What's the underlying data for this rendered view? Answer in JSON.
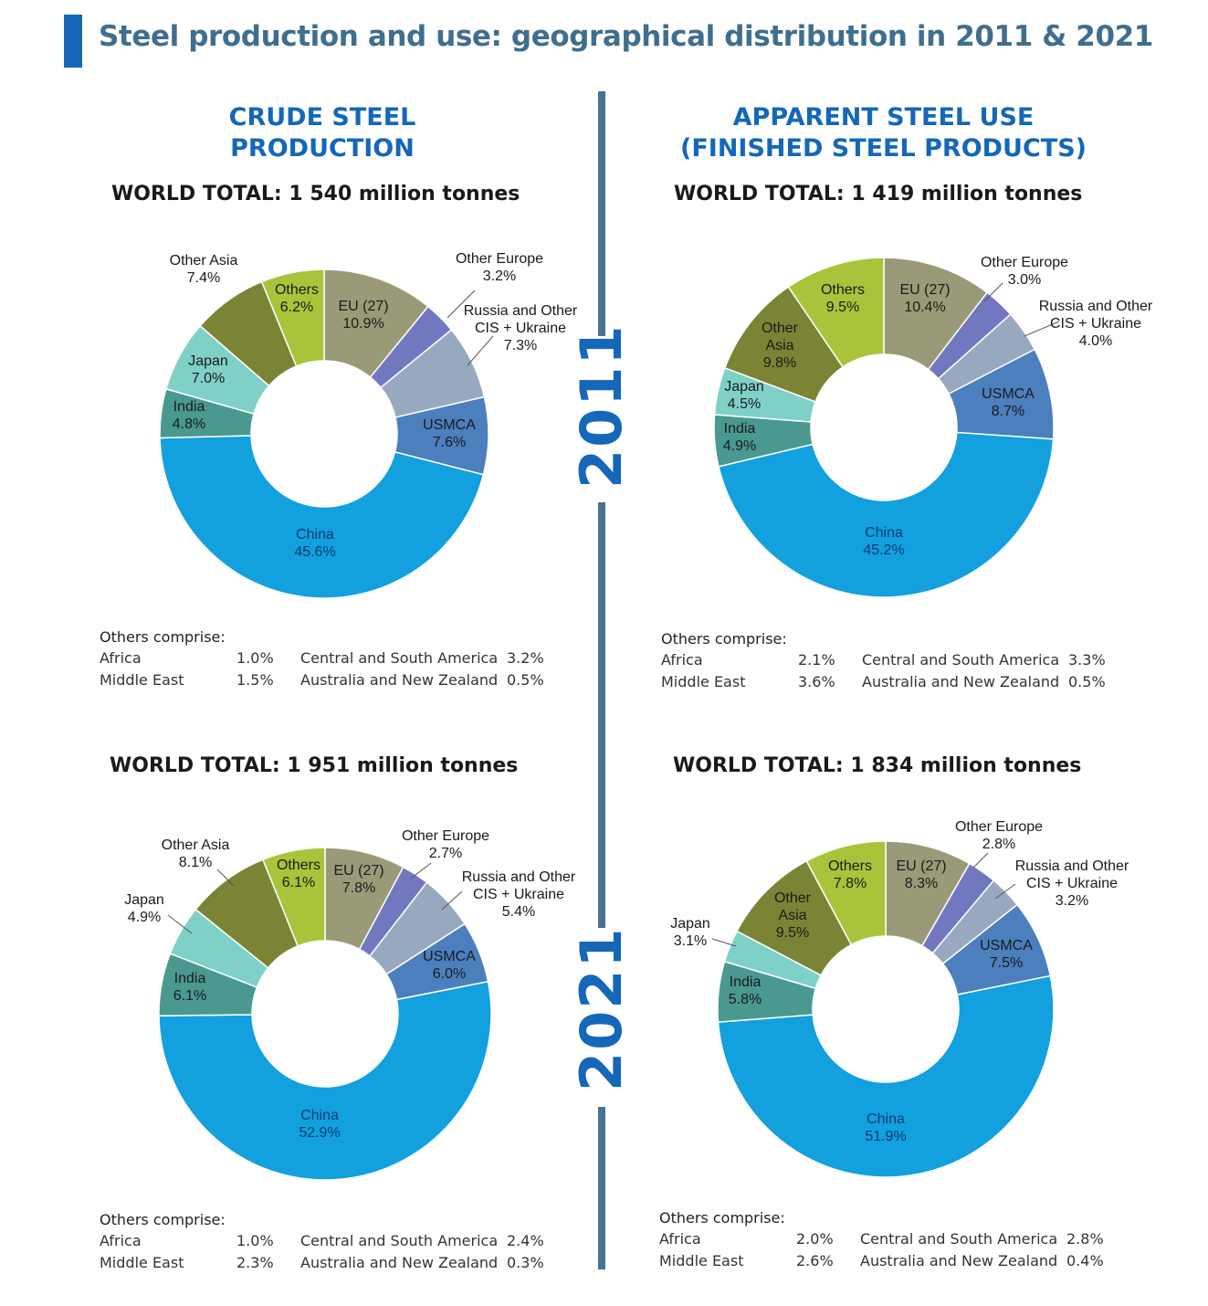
{
  "page": {
    "title": "Steel production and use: geographical distribution in 2011 & 2021",
    "col_left": [
      "CRUDE STEEL",
      "PRODUCTION"
    ],
    "col_right": [
      "APPARENT STEEL USE",
      "(FINISHED STEEL PRODUCTS)"
    ],
    "year_top": "2011",
    "year_bottom": "2021",
    "others_label": "Others comprise:"
  },
  "colors": {
    "EU (27)": "#9b9a78",
    "Other Europe": "#7278c0",
    "Russia and Other CIS + Ukraine": "#98a9bf",
    "USMCA": "#4b7fbe",
    "China": "#12a0de",
    "India": "#4a9990",
    "Japan": "#7fd1c8",
    "Other Asia": "#7a8434",
    "Others": "#a9c43b"
  },
  "chart_data": [
    {
      "type": "pie",
      "id": "prod2011",
      "world_total": "WORLD TOTAL: 1 540 million tonnes",
      "slices": [
        {
          "label": "EU (27)",
          "value": 10.9,
          "text": [
            "EU (27)",
            "10.9%"
          ]
        },
        {
          "label": "Other Europe",
          "value": 3.2,
          "text": [
            "Other Europe",
            "3.2%"
          ]
        },
        {
          "label": "Russia and Other CIS + Ukraine",
          "value": 7.3,
          "text": [
            "Russia and Other",
            "CIS + Ukraine",
            "7.3%"
          ]
        },
        {
          "label": "USMCA",
          "value": 7.6,
          "text": [
            "USMCA",
            "7.6%"
          ]
        },
        {
          "label": "China",
          "value": 45.6,
          "text": [
            "China",
            "45.6%"
          ]
        },
        {
          "label": "India",
          "value": 4.8,
          "text": [
            "India",
            "4.8%"
          ]
        },
        {
          "label": "Japan",
          "value": 7.0,
          "text": [
            "Japan",
            "7.0%"
          ]
        },
        {
          "label": "Other Asia",
          "value": 7.4,
          "text": [
            "Other Asia",
            "7.4%"
          ]
        },
        {
          "label": "Others",
          "value": 6.2,
          "text": [
            "Others",
            "6.2%"
          ]
        }
      ],
      "others_comprise": [
        {
          "name": "Africa",
          "value": "1.0%"
        },
        {
          "name": "Middle East",
          "value": "1.5%"
        },
        {
          "name": "Central and South America",
          "value": "3.2%"
        },
        {
          "name": "Australia and New Zealand",
          "value": "0.5%"
        }
      ]
    },
    {
      "type": "pie",
      "id": "use2011",
      "world_total": "WORLD TOTAL: 1 419 million tonnes",
      "slices": [
        {
          "label": "EU (27)",
          "value": 10.4,
          "text": [
            "EU (27)",
            "10.4%"
          ]
        },
        {
          "label": "Other Europe",
          "value": 3.0,
          "text": [
            "Other Europe",
            "3.0%"
          ]
        },
        {
          "label": "Russia and Other CIS + Ukraine",
          "value": 4.0,
          "text": [
            "Russia and Other",
            "CIS + Ukraine",
            "4.0%"
          ]
        },
        {
          "label": "USMCA",
          "value": 8.7,
          "text": [
            "USMCA",
            "8.7%"
          ]
        },
        {
          "label": "China",
          "value": 45.2,
          "text": [
            "China",
            "45.2%"
          ]
        },
        {
          "label": "India",
          "value": 4.9,
          "text": [
            "India",
            "4.9%"
          ]
        },
        {
          "label": "Japan",
          "value": 4.5,
          "text": [
            "Japan",
            "4.5%"
          ]
        },
        {
          "label": "Other Asia",
          "value": 9.8,
          "text": [
            "Other",
            "Asia",
            "9.8%"
          ]
        },
        {
          "label": "Others",
          "value": 9.5,
          "text": [
            "Others",
            "9.5%"
          ]
        }
      ],
      "others_comprise": [
        {
          "name": "Africa",
          "value": "2.1%"
        },
        {
          "name": "Middle East",
          "value": "3.6%"
        },
        {
          "name": "Central and South America",
          "value": "3.3%"
        },
        {
          "name": "Australia and New Zealand",
          "value": "0.5%"
        }
      ]
    },
    {
      "type": "pie",
      "id": "prod2021",
      "world_total": "WORLD TOTAL: 1 951 million tonnes",
      "slices": [
        {
          "label": "EU (27)",
          "value": 7.8,
          "text": [
            "EU (27)",
            "7.8%"
          ]
        },
        {
          "label": "Other Europe",
          "value": 2.7,
          "text": [
            "Other Europe",
            "2.7%"
          ]
        },
        {
          "label": "Russia and Other CIS + Ukraine",
          "value": 5.4,
          "text": [
            "Russia and Other",
            "CIS + Ukraine",
            "5.4%"
          ]
        },
        {
          "label": "USMCA",
          "value": 6.0,
          "text": [
            "USMCA",
            "6.0%"
          ]
        },
        {
          "label": "China",
          "value": 52.9,
          "text": [
            "China",
            "52.9%"
          ]
        },
        {
          "label": "India",
          "value": 6.1,
          "text": [
            "India",
            "6.1%"
          ]
        },
        {
          "label": "Japan",
          "value": 4.9,
          "text": [
            "Japan",
            "4.9%"
          ]
        },
        {
          "label": "Other Asia",
          "value": 8.1,
          "text": [
            "Other Asia",
            "8.1%"
          ]
        },
        {
          "label": "Others",
          "value": 6.1,
          "text": [
            "Others",
            "6.1%"
          ]
        }
      ],
      "others_comprise": [
        {
          "name": "Africa",
          "value": "1.0%"
        },
        {
          "name": "Middle East",
          "value": "2.3%"
        },
        {
          "name": "Central and South America",
          "value": "2.4%"
        },
        {
          "name": "Australia and New Zealand",
          "value": "0.3%"
        }
      ]
    },
    {
      "type": "pie",
      "id": "use2021",
      "world_total": "WORLD TOTAL: 1 834 million tonnes",
      "slices": [
        {
          "label": "EU (27)",
          "value": 8.3,
          "text": [
            "EU (27)",
            "8.3%"
          ]
        },
        {
          "label": "Other Europe",
          "value": 2.8,
          "text": [
            "Other Europe",
            "2.8%"
          ]
        },
        {
          "label": "Russia and Other CIS + Ukraine",
          "value": 3.2,
          "text": [
            "Russia and Other",
            "CIS + Ukraine",
            "3.2%"
          ]
        },
        {
          "label": "USMCA",
          "value": 7.5,
          "text": [
            "USMCA",
            "7.5%"
          ]
        },
        {
          "label": "China",
          "value": 51.9,
          "text": [
            "China",
            "51.9%"
          ]
        },
        {
          "label": "India",
          "value": 5.8,
          "text": [
            "India",
            "5.8%"
          ]
        },
        {
          "label": "Japan",
          "value": 3.1,
          "text": [
            "Japan",
            "3.1%"
          ]
        },
        {
          "label": "Other Asia",
          "value": 9.5,
          "text": [
            "Other",
            "Asia",
            "9.5%"
          ]
        },
        {
          "label": "Others",
          "value": 7.8,
          "text": [
            "Others",
            "7.8%"
          ]
        }
      ],
      "others_comprise": [
        {
          "name": "Africa",
          "value": "2.0%"
        },
        {
          "name": "Middle East",
          "value": "2.6%"
        },
        {
          "name": "Central and South America",
          "value": "2.8%"
        },
        {
          "name": "Australia and New Zealand",
          "value": "0.4%"
        }
      ]
    }
  ]
}
